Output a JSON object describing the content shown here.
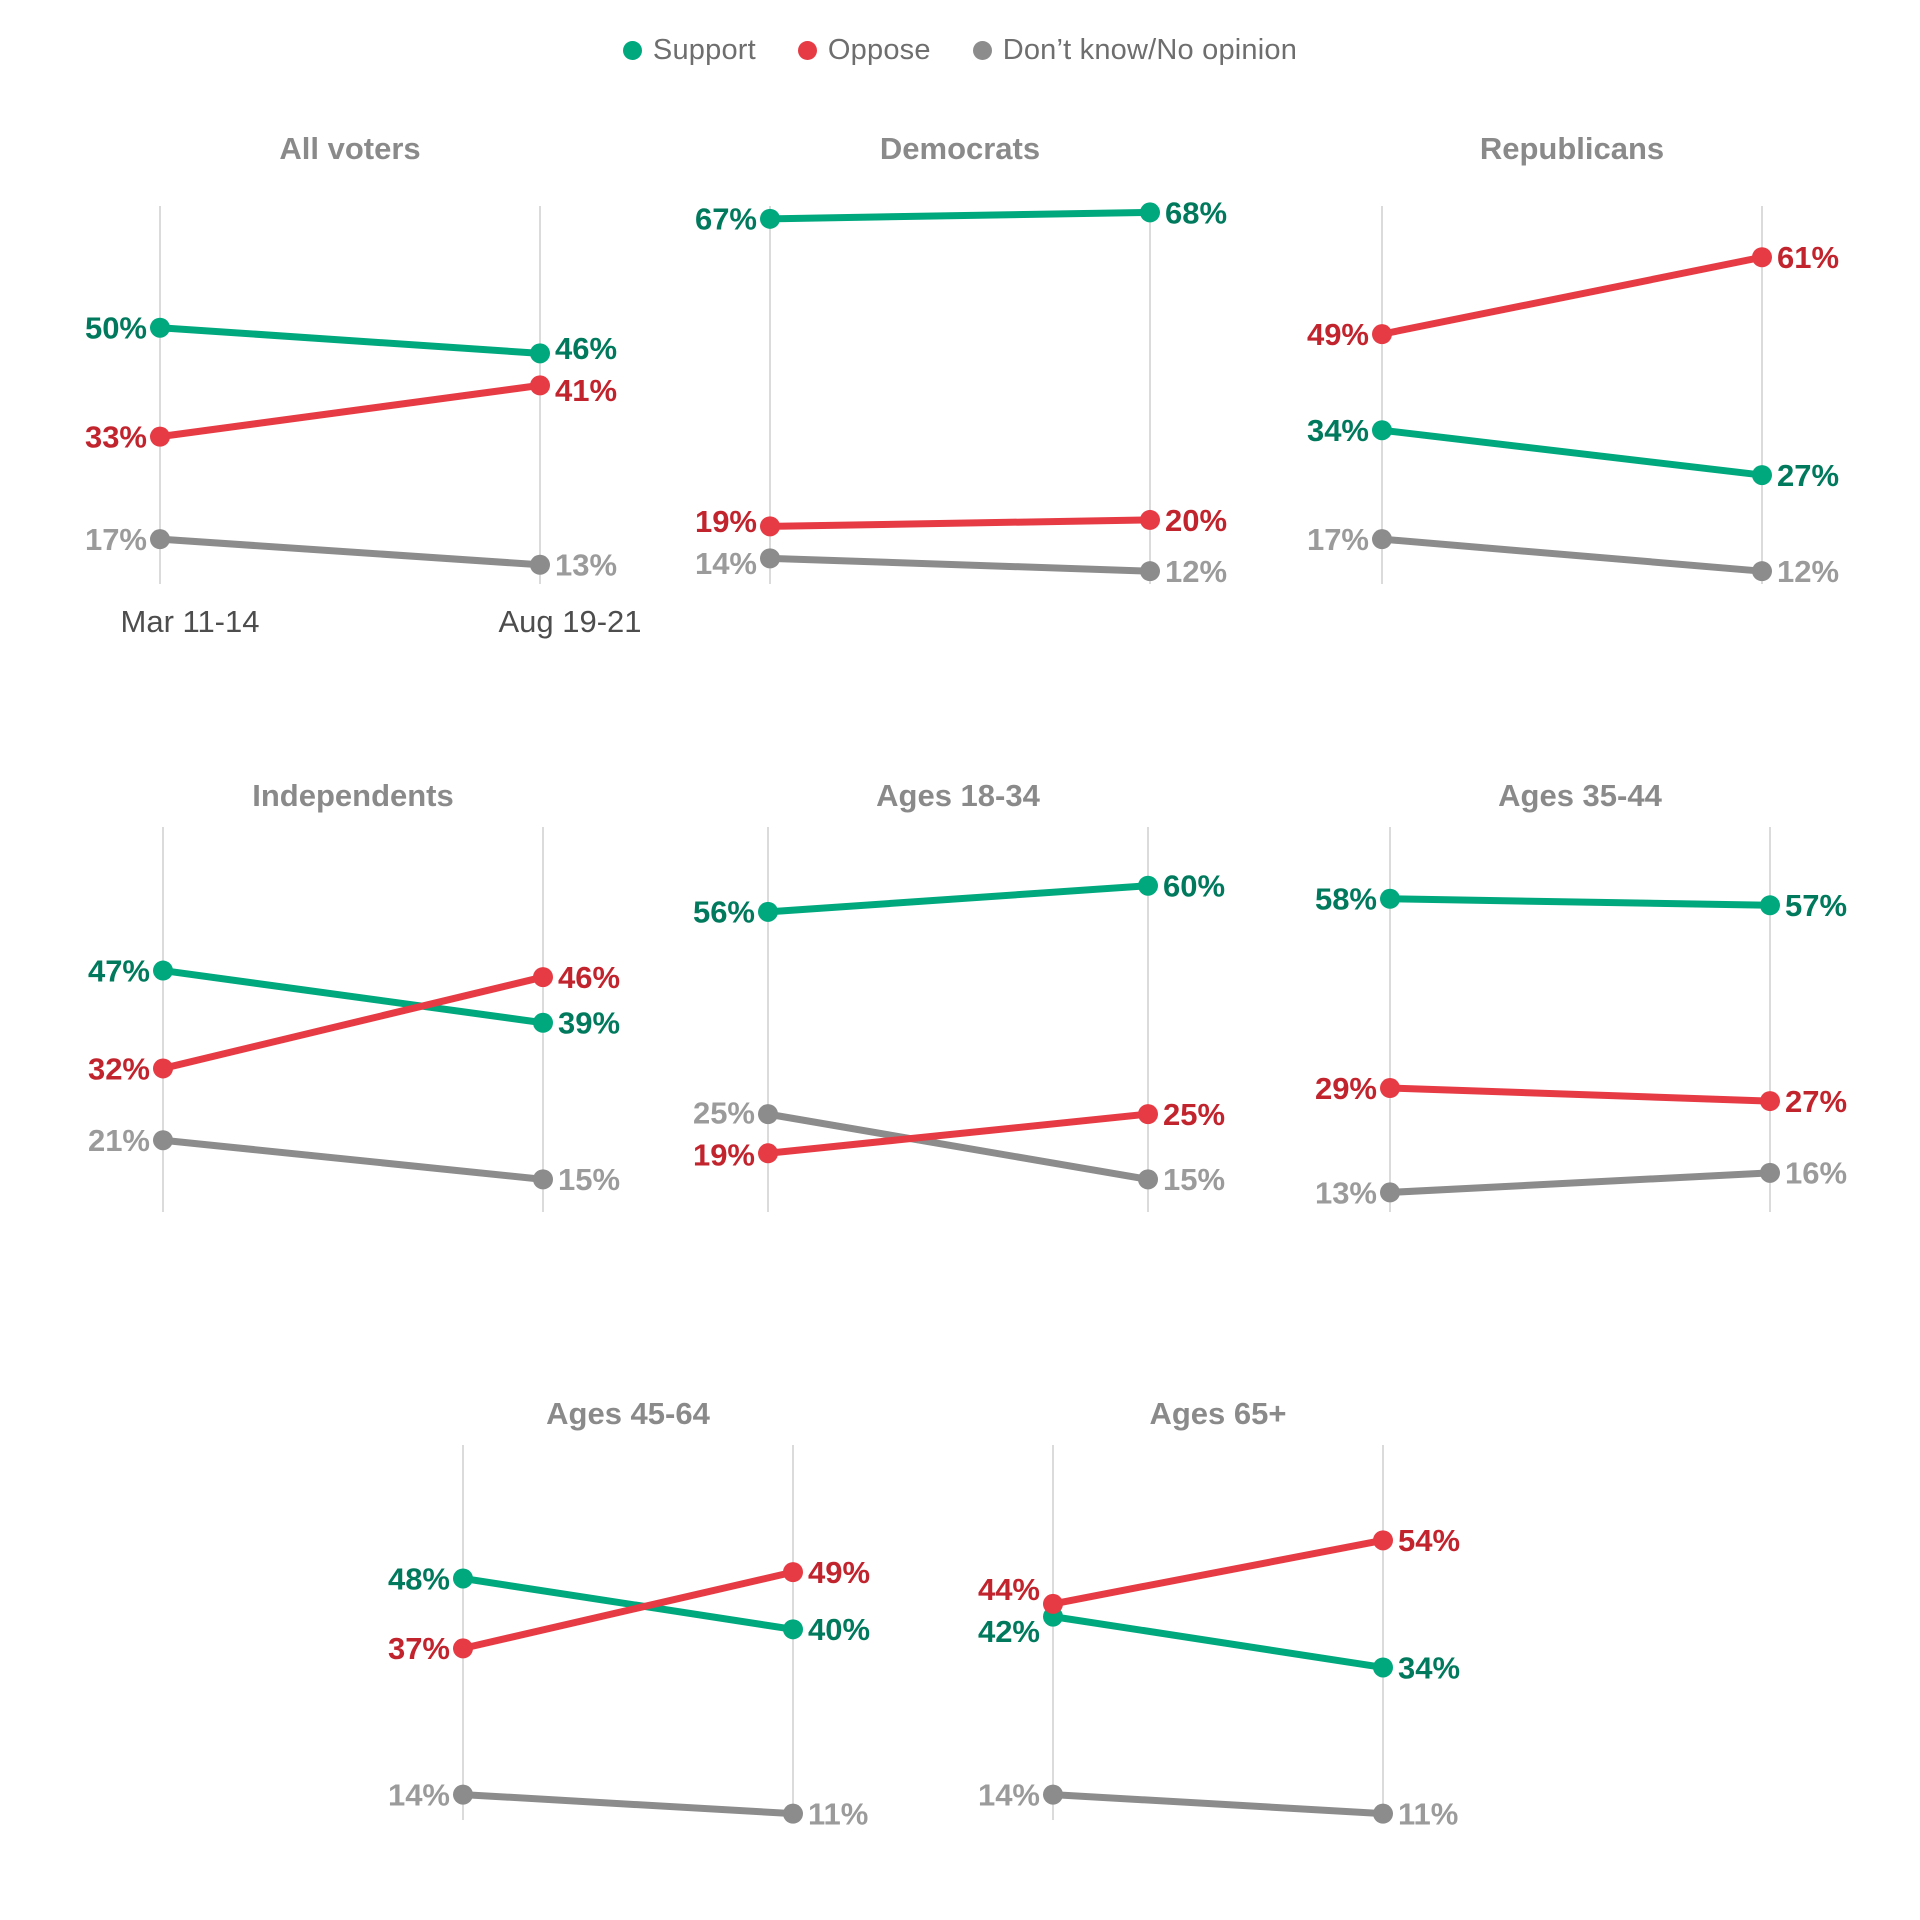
{
  "legend": {
    "items": [
      {
        "label": "Support",
        "key": "support"
      },
      {
        "label": "Oppose",
        "key": "oppose"
      },
      {
        "label": "Don’t know/No opinion",
        "key": "dont_know"
      }
    ]
  },
  "colors": {
    "support_line": "#00A87E",
    "support_text": "#00795C",
    "oppose_line": "#E63B44",
    "oppose_text": "#C2242E",
    "dont_know_line": "#8C8C8C",
    "dont_know_text": "#9B9B9B",
    "gridline": "#DBDBDB",
    "title": "#8A8A8A",
    "legend_text": "#6E6E6E",
    "axis_label": "#4D4D4D"
  },
  "chart_data": {
    "type": "line",
    "subtype": "slope-small-multiples",
    "x": [
      "Mar 11-14",
      "Aug 19-21"
    ],
    "series_names": [
      "Support",
      "Oppose",
      "Don’t know/No opinion"
    ],
    "legend_position": "top",
    "grid": "vertical-axis-lines-only",
    "value_unit": "%",
    "ylim_mapped": [
      10,
      69
    ],
    "panels": [
      {
        "title": "All voters",
        "support": [
          50,
          46
        ],
        "oppose": [
          33,
          41
        ],
        "dont_know": [
          17,
          13
        ]
      },
      {
        "title": "Democrats",
        "support": [
          67,
          68
        ],
        "oppose": [
          19,
          20
        ],
        "dont_know": [
          14,
          12
        ]
      },
      {
        "title": "Republicans",
        "support": [
          34,
          27
        ],
        "oppose": [
          49,
          61
        ],
        "dont_know": [
          17,
          12
        ]
      },
      {
        "title": "Independents",
        "support": [
          47,
          39
        ],
        "oppose": [
          32,
          46
        ],
        "dont_know": [
          21,
          15
        ]
      },
      {
        "title": "Ages 18-34",
        "support": [
          56,
          60
        ],
        "oppose": [
          19,
          25
        ],
        "dont_know": [
          25,
          15
        ]
      },
      {
        "title": "Ages 35-44",
        "support": [
          58,
          57
        ],
        "oppose": [
          29,
          27
        ],
        "dont_know": [
          13,
          16
        ]
      },
      {
        "title": "Ages 45-64",
        "support": [
          48,
          40
        ],
        "oppose": [
          37,
          49
        ],
        "dont_know": [
          14,
          11
        ]
      },
      {
        "title": "Ages 65+",
        "support": [
          42,
          34
        ],
        "oppose": [
          44,
          54
        ],
        "dont_know": [
          14,
          11
        ]
      }
    ]
  }
}
